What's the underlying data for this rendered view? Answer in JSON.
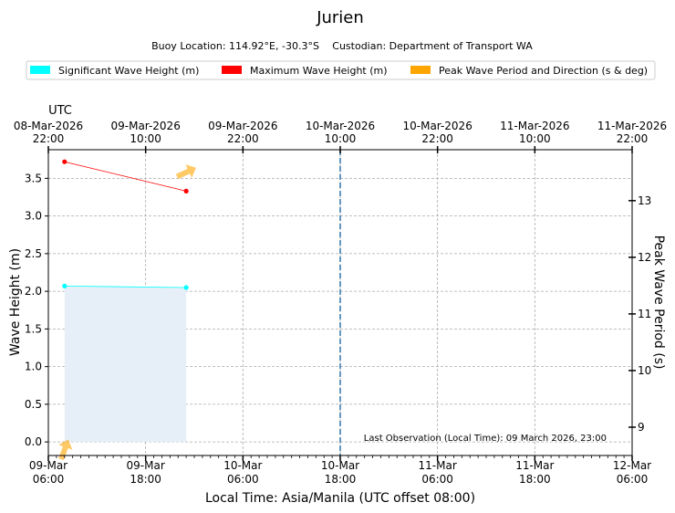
{
  "chart_data": {
    "type": "line",
    "title": "Jurien",
    "subtitle_location": "Buoy Location: 114.92°E, -30.3°S",
    "subtitle_custodian": "Custodian: Department of Transport WA",
    "legend": [
      {
        "label": "Significant Wave Height (m)",
        "color": "#00ffff"
      },
      {
        "label": "Maximum Wave Height (m)",
        "color": "#ff0000"
      },
      {
        "label": "Peak Wave Period and Direction (s & deg)",
        "color": "#ffa500"
      }
    ],
    "top_axis_label": "UTC",
    "top_ticks": [
      {
        "hours": 0,
        "date": "08-Mar-2026",
        "time": "22:00"
      },
      {
        "hours": 12,
        "date": "09-Mar-2026",
        "time": "10:00"
      },
      {
        "hours": 24,
        "date": "09-Mar-2026",
        "time": "22:00"
      },
      {
        "hours": 36,
        "date": "10-Mar-2026",
        "time": "10:00"
      },
      {
        "hours": 48,
        "date": "10-Mar-2026",
        "time": "22:00"
      },
      {
        "hours": 60,
        "date": "11-Mar-2026",
        "time": "10:00"
      },
      {
        "hours": 72,
        "date": "11-Mar-2026",
        "time": "22:00"
      }
    ],
    "bottom_ticks": [
      {
        "hours": 0,
        "date": "09-Mar",
        "time": "06:00"
      },
      {
        "hours": 12,
        "date": "09-Mar",
        "time": "18:00"
      },
      {
        "hours": 24,
        "date": "10-Mar",
        "time": "06:00"
      },
      {
        "hours": 36,
        "date": "10-Mar",
        "time": "18:00"
      },
      {
        "hours": 48,
        "date": "11-Mar",
        "time": "06:00"
      },
      {
        "hours": 60,
        "date": "11-Mar",
        "time": "18:00"
      },
      {
        "hours": 72,
        "date": "12-Mar",
        "time": "06:00"
      }
    ],
    "xlabel": "Local Time: Asia/Manila (UTC offset 08:00)",
    "ylabel": "Wave Height (m)",
    "ylabel_right": "Peak Wave Period (s)",
    "xlim": [
      0,
      72
    ],
    "ylim": [
      -0.18,
      3.88
    ],
    "yticks": [
      0.0,
      0.5,
      1.0,
      1.5,
      2.0,
      2.5,
      3.0,
      3.5
    ],
    "ylim_right": [
      8.5,
      13.9
    ],
    "yticks_right": [
      9,
      10,
      11,
      12,
      13
    ],
    "grid": true,
    "series": [
      {
        "name": "Significant Wave Height (m)",
        "color": "#00ffff",
        "x": [
          2,
          17
        ],
        "values": [
          2.07,
          2.05
        ],
        "fill": true
      },
      {
        "name": "Maximum Wave Height (m)",
        "color": "#ff0000",
        "x": [
          2,
          17
        ],
        "values": [
          3.72,
          3.33
        ]
      }
    ],
    "period_direction": [
      {
        "hours": 2,
        "period": 8.6,
        "direction_deg": 200
      },
      {
        "hours": 17,
        "period": 13.5,
        "direction_deg": 245
      }
    ],
    "current_time_hours": 36,
    "annotation": "Last Observation (Local Time): 09 March 2026, 23:00"
  }
}
